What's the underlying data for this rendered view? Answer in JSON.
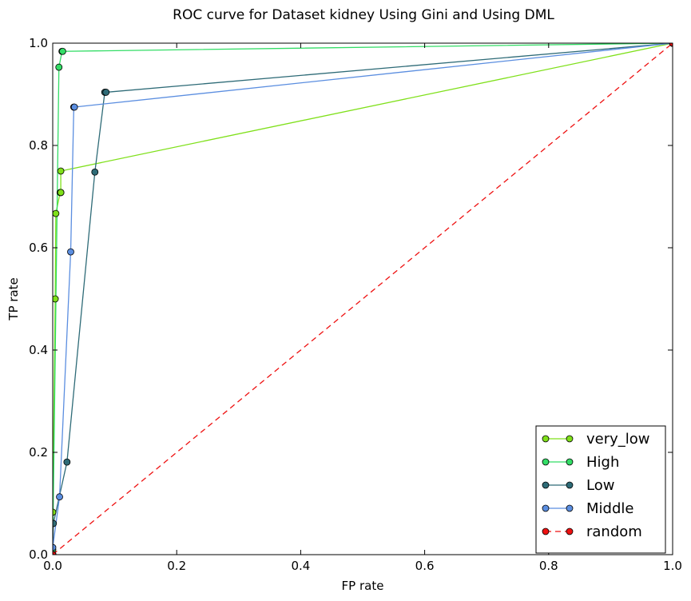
{
  "chart_data": {
    "type": "line",
    "title": "ROC curve for Dataset kidney Using Gini and Using DML",
    "xlabel": "FP rate",
    "ylabel": "TP rate",
    "xlim": [
      0.0,
      1.0
    ],
    "ylim": [
      0.0,
      1.0
    ],
    "xticks": [
      "0.0",
      "0.2",
      "0.4",
      "0.6",
      "0.8",
      "1.0"
    ],
    "yticks": [
      "0.0",
      "0.2",
      "0.4",
      "0.6",
      "0.8",
      "1.0"
    ],
    "xtick_values": [
      0.0,
      0.2,
      0.4,
      0.6,
      0.8,
      1.0
    ],
    "ytick_values": [
      0.0,
      0.2,
      0.4,
      0.6,
      0.8,
      1.0
    ],
    "grid": false,
    "legend_position": "bottom-right",
    "series": [
      {
        "name": "very_low",
        "color": "#7fe01a",
        "dashed": false,
        "x": [
          0.0,
          0.0,
          0.004,
          0.005,
          0.012,
          0.013,
          0.013,
          0.013,
          0.013,
          1.0
        ],
        "y": [
          0.0,
          0.083,
          0.5,
          0.667,
          0.708,
          0.708,
          0.708,
          0.708,
          0.75,
          1.0
        ]
      },
      {
        "name": "High",
        "color": "#33dd66",
        "dashed": false,
        "x": [
          0.0,
          0.0,
          0.01,
          0.015,
          0.016,
          1.0
        ],
        "y": [
          0.0,
          0.01,
          0.953,
          0.984,
          0.984,
          1.0
        ]
      },
      {
        "name": "Low",
        "color": "#2e6b77",
        "dashed": false,
        "x": [
          0.0,
          0.001,
          0.023,
          0.068,
          0.084,
          0.086,
          1.0
        ],
        "y": [
          0.0,
          0.061,
          0.181,
          0.748,
          0.904,
          0.904,
          1.0
        ]
      },
      {
        "name": "Middle",
        "color": "#5b8ee0",
        "dashed": false,
        "x": [
          0.0,
          0.0,
          0.011,
          0.029,
          0.034,
          0.035,
          1.0
        ],
        "y": [
          0.0,
          0.014,
          0.113,
          0.592,
          0.875,
          0.875,
          1.0
        ]
      },
      {
        "name": "random",
        "color": "#ee1111",
        "dashed": true,
        "x": [
          0.0,
          1.0
        ],
        "y": [
          0.0,
          1.0
        ]
      }
    ]
  }
}
